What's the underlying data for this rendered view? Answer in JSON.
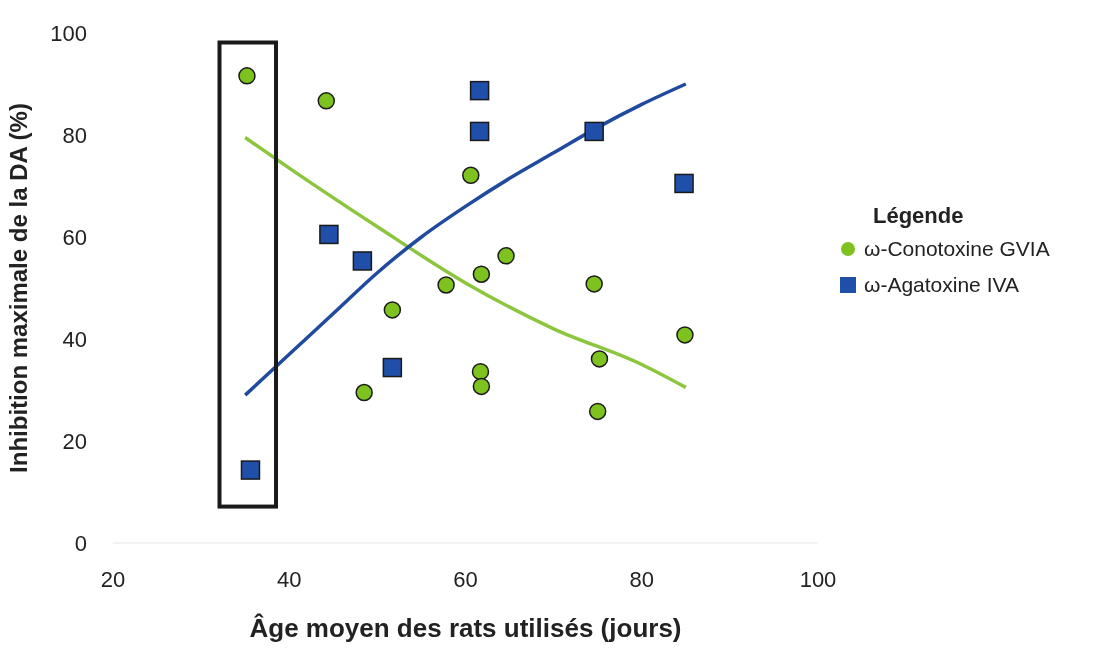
{
  "chart_data": {
    "type": "scatter",
    "xlabel": "Âge moyen des rats utilisés (jours)",
    "ylabel": "Inhibition maximale de la DA (%)",
    "legend_title": "Légende",
    "legend": "right",
    "grid": false,
    "xlim": [
      20,
      100
    ],
    "xticks": [
      20,
      40,
      60,
      80,
      100
    ],
    "ylim": [
      0,
      100
    ],
    "yticks": [
      0,
      20,
      40,
      60,
      80,
      100
    ],
    "series": [
      {
        "name": "ω-Conotoxine GVIA",
        "marker": "circle",
        "color": "#7dc21e",
        "x": [
          35.2,
          44.2,
          51.7,
          48.5,
          57.8,
          60.6,
          61.8,
          64.6,
          61.7,
          61.8,
          74.6,
          75.2,
          75.0,
          84.9
        ],
        "values": [
          91.6,
          86.7,
          45.7,
          29.5,
          50.6,
          72.1,
          52.7,
          56.3,
          33.6,
          30.7,
          50.8,
          36.1,
          25.8,
          40.8
        ]
      },
      {
        "name": "ω-Agatoxine IVA",
        "marker": "square",
        "color": "#1f4fa8",
        "x": [
          35.6,
          44.5,
          48.3,
          51.7,
          61.6,
          61.6,
          74.6,
          84.8
        ],
        "values": [
          14.3,
          60.5,
          55.3,
          34.4,
          88.7,
          80.7,
          80.7,
          70.5
        ]
      },
      {
        "type": "line",
        "marker": "none",
        "color": "#8cc63f",
        "x": [
          35,
          40,
          50,
          60,
          70,
          80,
          85
        ],
        "values": [
          79.5,
          73.5,
          62,
          51,
          42,
          35,
          30.5
        ]
      },
      {
        "type": "line",
        "marker": "none",
        "color": "#1f4a9e",
        "x": [
          35,
          40,
          45,
          50,
          55,
          60,
          65,
          70,
          75,
          80,
          85
        ],
        "values": [
          29,
          37,
          45,
          53,
          60,
          66,
          71.5,
          76.5,
          81.5,
          86,
          90
        ]
      }
    ]
  }
}
